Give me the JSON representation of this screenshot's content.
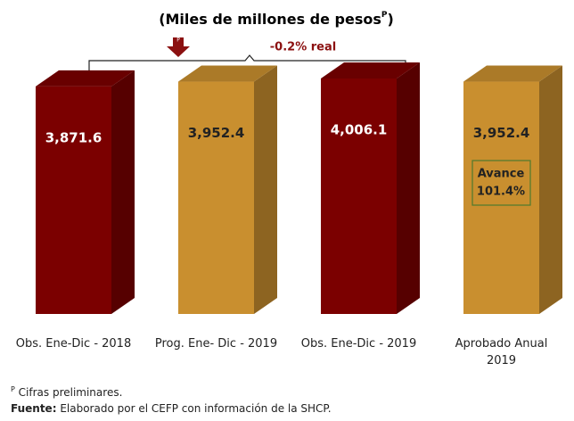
{
  "chart_data": {
    "type": "bar3d",
    "title": "(Miles de millones de pesos",
    "title_superscript": "P",
    "title_end": ")",
    "change_label": "-0.2% real",
    "arrow_label": "P",
    "categories": [
      "Obs. Ene-Dic - 2018",
      "Prog. Ene- Dic - 2019",
      "Obs. Ene-Dic - 2019",
      "Aprobado Anual 2019"
    ],
    "values": [
      3871.6,
      3952.4,
      4006.1,
      3952.4
    ],
    "value_labels": [
      "3,871.6",
      "3,952.4",
      "4,006.1",
      "3,952.4"
    ],
    "colors": [
      "#7b0000",
      "#c98f2f",
      "#7b0000",
      "#c98f2f"
    ],
    "progress_box": [
      "Avance",
      "101.4%"
    ],
    "footnote_mark": "P",
    "footnote": "Cifras preliminares.",
    "source_label": "Fuente:",
    "source": "Elaborado por el CEFP con información de la SHCP."
  }
}
